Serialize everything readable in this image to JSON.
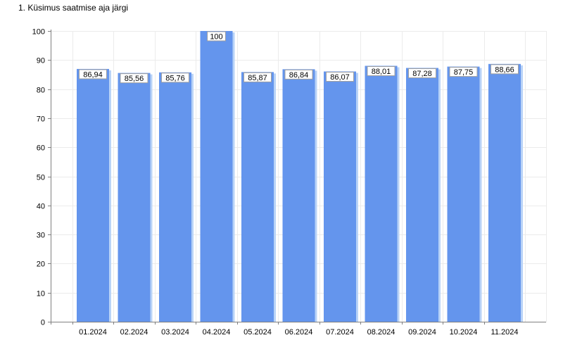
{
  "chart_data": {
    "type": "bar",
    "title": "1. Küsimus saatmise aja järgi",
    "xlabel": "",
    "ylabel": "",
    "categories": [
      "01.2024",
      "02.2024",
      "03.2024",
      "04.2024",
      "05.2024",
      "06.2024",
      "07.2024",
      "08.2024",
      "09.2024",
      "10.2024",
      "11.2024"
    ],
    "values": [
      86.94,
      85.56,
      85.76,
      100,
      85.87,
      86.84,
      86.07,
      88.01,
      87.28,
      87.75,
      88.66
    ],
    "data_labels": [
      "86,94",
      "85,56",
      "85,76",
      "100",
      "85,87",
      "86,84",
      "86,07",
      "88,01",
      "87,28",
      "87,75",
      "88,66"
    ],
    "ylim": [
      0,
      100
    ],
    "yticks": [
      0,
      10,
      20,
      30,
      40,
      50,
      60,
      70,
      80,
      90,
      100
    ],
    "grid": true,
    "legend": "none",
    "colors": {
      "bar": "#6495ED",
      "bar_shadow": "#B9D3F7",
      "axis": "#808080",
      "grid": "#EBEBEB",
      "label_box_border": "#A0A0A0",
      "label_box_fill": "#FFFFFF"
    }
  }
}
